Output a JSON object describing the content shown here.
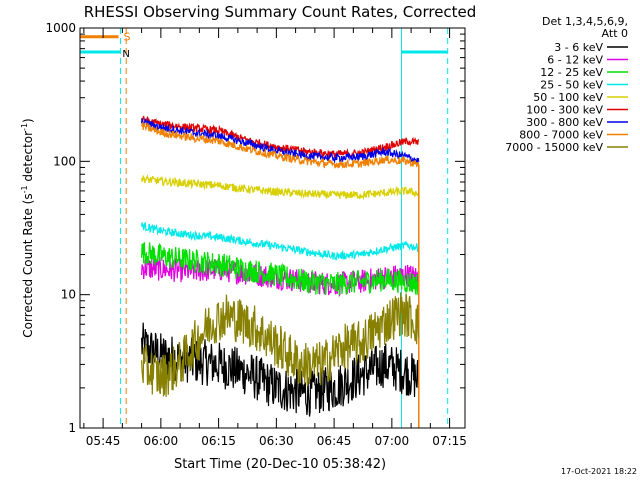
{
  "chart_data": {
    "type": "line",
    "title": "RHESSI Observing Summary Count Rates, Corrected",
    "xlabel": "Start Time (20-Dec-10 05:38:42)",
    "ylabel_parts": [
      "Corrected Count Rate (s",
      "-1",
      " detector",
      "-1",
      ")"
    ],
    "y_scale": "log",
    "ylim": [
      1,
      1000
    ],
    "y_ticks": [
      {
        "value": 1,
        "label": "1"
      },
      {
        "value": 10,
        "label": "10"
      },
      {
        "value": 100,
        "label": "100"
      },
      {
        "value": 1000,
        "label": "1000"
      }
    ],
    "xlim_minutes": [
      -21,
      79
    ],
    "x_ticks": [
      {
        "t": -15,
        "label": "05:45"
      },
      {
        "t": 0,
        "label": "06:00"
      },
      {
        "t": 15,
        "label": "06:15"
      },
      {
        "t": 30,
        "label": "06:30"
      },
      {
        "t": 45,
        "label": "06:45"
      },
      {
        "t": 60,
        "label": "07:00"
      },
      {
        "t": 75,
        "label": "07:15"
      }
    ],
    "legend_header": [
      "Det 1,3,4,5,6,9,",
      "Att 0"
    ],
    "legend_position": "right",
    "series": [
      {
        "name": "3 - 6 keV",
        "color": "#000000",
        "x": [
          -5,
          0,
          8,
          15,
          22,
          30,
          38,
          45,
          52,
          58,
          64,
          67
        ],
        "y": [
          4.2,
          3.5,
          3.2,
          3.0,
          2.6,
          2.0,
          1.8,
          2.0,
          2.5,
          3.0,
          2.6,
          2.3
        ]
      },
      {
        "name": "6 - 12 keV",
        "color": "#e000e0",
        "x": [
          -5,
          0,
          8,
          15,
          22,
          30,
          38,
          45,
          52,
          58,
          64,
          67
        ],
        "y": [
          16,
          15.5,
          15,
          15.5,
          14.5,
          13.5,
          12.5,
          12,
          12.5,
          13.5,
          14,
          13.5
        ]
      },
      {
        "name": "12 - 25 keV",
        "color": "#00e000",
        "x": [
          -5,
          0,
          8,
          15,
          22,
          30,
          38,
          45,
          52,
          58,
          64,
          67
        ],
        "y": [
          21,
          19.5,
          18,
          17,
          15.5,
          14,
          12.5,
          12,
          12.5,
          13,
          12.5,
          12
        ]
      },
      {
        "name": "25 - 50 keV",
        "color": "#00e8e8",
        "x": [
          -5,
          0,
          8,
          15,
          22,
          30,
          38,
          45,
          52,
          58,
          64,
          67
        ],
        "y": [
          33,
          30,
          28,
          27,
          25,
          23,
          21,
          19.5,
          20,
          22,
          23.5,
          22.5
        ]
      },
      {
        "name": "50 - 100 keV",
        "color": "#d8d000",
        "x": [
          -5,
          0,
          8,
          15,
          22,
          30,
          38,
          45,
          52,
          58,
          64,
          67
        ],
        "y": [
          74,
          71,
          68,
          66,
          62,
          59,
          57,
          56,
          56,
          58,
          60,
          57
        ]
      },
      {
        "name": "100 - 300 keV",
        "color": "#e00000",
        "x": [
          -5,
          0,
          8,
          15,
          22,
          30,
          38,
          45,
          52,
          58,
          64,
          67
        ],
        "y": [
          205,
          190,
          178,
          170,
          145,
          128,
          118,
          113,
          115,
          128,
          142,
          138
        ]
      },
      {
        "name": "300 - 800 keV",
        "color": "#0000e8",
        "x": [
          -5,
          0,
          8,
          15,
          22,
          30,
          38,
          45,
          52,
          58,
          64,
          67
        ],
        "y": [
          198,
          180,
          165,
          155,
          138,
          120,
          110,
          106,
          108,
          118,
          108,
          100
        ]
      },
      {
        "name": "800 - 7000 keV",
        "color": "#f08000",
        "x": [
          -5,
          0,
          8,
          15,
          22,
          30,
          38,
          45,
          52,
          58,
          64,
          67
        ],
        "y": [
          185,
          165,
          150,
          142,
          125,
          110,
          100,
          95,
          96,
          103,
          100,
          94
        ]
      },
      {
        "name": "7000 - 15000 keV",
        "color": "#888000",
        "x": [
          -5,
          0,
          5,
          10,
          13,
          17,
          20,
          24,
          30,
          36,
          42,
          47,
          52,
          57,
          62,
          65,
          67
        ],
        "y": [
          3.0,
          2.4,
          3.0,
          4.8,
          6.2,
          7.0,
          6.5,
          5.8,
          4.2,
          3.0,
          3.0,
          4.0,
          4.3,
          5.8,
          7.3,
          6.8,
          5.8
        ]
      }
    ],
    "segments": [
      {
        "label": "S",
        "color": "#f08000",
        "bar_value": 860,
        "start": -21,
        "end": -11
      }
    ],
    "markers": [
      {
        "color": "#00e8e8",
        "style": "solid",
        "t": -21
      },
      {
        "color": "#00e8e8",
        "style": "dashed",
        "t": -10.5
      },
      {
        "color": "#f08000",
        "style": "dashed",
        "t": -9
      },
      {
        "color": "#00e8e8",
        "style": "solid",
        "t": 62.5
      },
      {
        "color": "#00e8e8",
        "style": "dashed",
        "t": 74.5
      }
    ],
    "night_bars": [
      {
        "color": "#00e8e8",
        "value": 660,
        "start": -21,
        "end": -10.5,
        "label": "N"
      },
      {
        "color": "#00e8e8",
        "value": 660,
        "start": 62.5,
        "end": 74.5,
        "label": ""
      }
    ],
    "footer_date": "17-Oct-2021 18:22"
  }
}
